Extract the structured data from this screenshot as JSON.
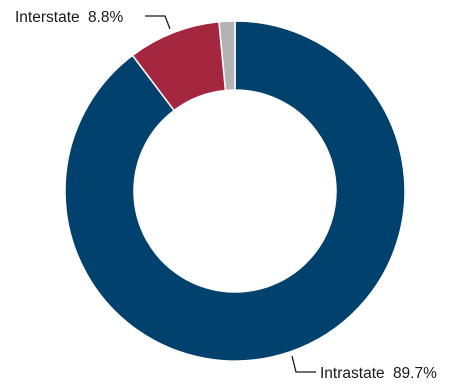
{
  "chart_data": {
    "type": "pie",
    "donut": true,
    "slices": [
      {
        "label": "Intrastate",
        "value": 89.7,
        "value_label": "89.7%",
        "color": "#00416e"
      },
      {
        "label": "Interstate",
        "value": 8.8,
        "value_label": "8.8%",
        "color": "#a4273f"
      },
      {
        "label": "",
        "value": 1.5,
        "value_label": "",
        "color": "#b3b3b3"
      }
    ],
    "start": "12 o'clock",
    "direction": "clockwise",
    "legend": "none",
    "data_labels": "outside with leader lines"
  }
}
